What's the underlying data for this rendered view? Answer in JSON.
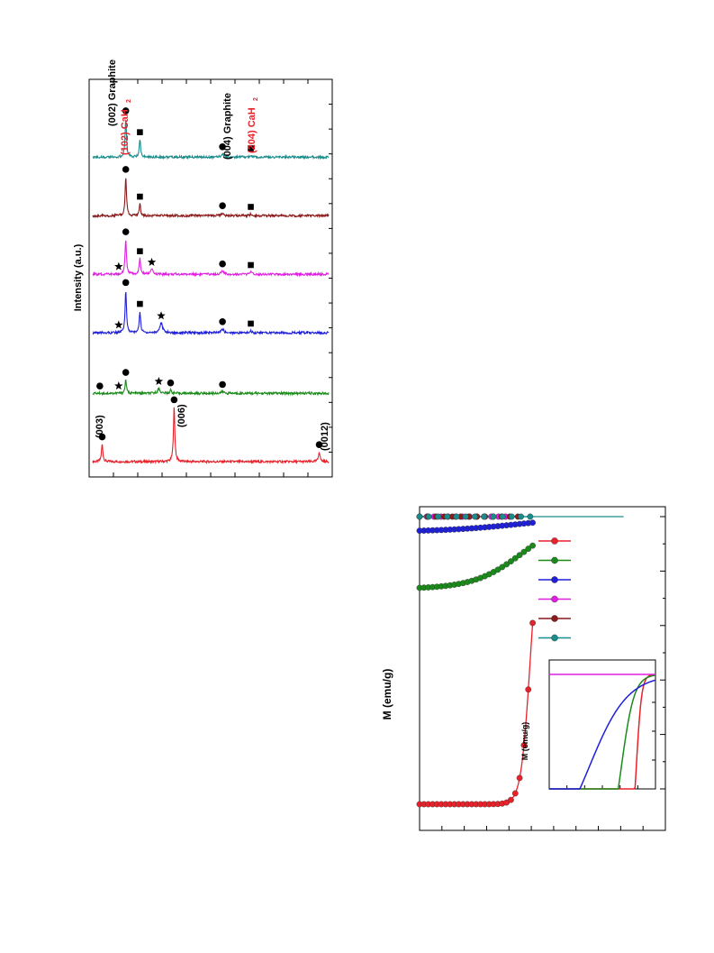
{
  "figures": {
    "xrd": {
      "ylabel": "Intensity (a.u.)",
      "markers": {
        "circle": "●",
        "square": "■",
        "star": "★"
      },
      "peak_labels": {
        "p002_graphite": "(002) Graphite",
        "p102_cah2": "(102) CaH",
        "p004_graphite": "(004) Graphite",
        "p204_cah2": "(204) CaH",
        "sub2": "2",
        "p003": "(003)",
        "p006": "(006)",
        "p0012": "(0012)"
      }
    },
    "magnetization": {
      "ylabel": "M (emu/g)",
      "inset_ylabel": "M (emu/g)"
    }
  },
  "chart_data": [
    {
      "type": "line",
      "title": "",
      "xlabel": "",
      "ylabel": "Intensity (a.u.)",
      "orientation": "rotated-90",
      "xlim": [
        0,
        100
      ],
      "series": [
        {
          "name": "",
          "color": "#e8212a",
          "baseline": 0.03,
          "peaks": [
            {
              "x": 4,
              "h": 0.045,
              "w": 0.35
            },
            {
              "x": 34.5,
              "h": 0.14,
              "w": 0.35
            },
            {
              "x": 96,
              "h": 0.025,
              "w": 0.4
            }
          ]
        },
        {
          "name": "",
          "color": "#1a8a1a",
          "baseline": 0.205,
          "peaks": [
            {
              "x": 14,
              "h": 0.035,
              "w": 0.35
            },
            {
              "x": 28,
              "h": 0.012,
              "w": 0.6
            },
            {
              "x": 33,
              "h": 0.008,
              "w": 0.4
            },
            {
              "x": 55,
              "h": 0.004,
              "w": 0.8
            }
          ]
        },
        {
          "name": "",
          "color": "#1f1fd8",
          "baseline": 0.36,
          "peaks": [
            {
              "x": 14,
              "h": 0.11,
              "w": 0.35
            },
            {
              "x": 20,
              "h": 0.055,
              "w": 0.35
            },
            {
              "x": 29,
              "h": 0.025,
              "w": 0.7
            },
            {
              "x": 55,
              "h": 0.01,
              "w": 0.6
            },
            {
              "x": 67,
              "h": 0.005,
              "w": 0.5
            }
          ]
        },
        {
          "name": "",
          "color": "#e020e0",
          "baseline": 0.51,
          "peaks": [
            {
              "x": 14,
              "h": 0.09,
              "w": 0.35
            },
            {
              "x": 20,
              "h": 0.04,
              "w": 0.35
            },
            {
              "x": 25,
              "h": 0.012,
              "w": 0.6
            },
            {
              "x": 55,
              "h": 0.008,
              "w": 0.6
            },
            {
              "x": 67,
              "h": 0.005,
              "w": 0.5
            }
          ]
        },
        {
          "name": "",
          "color": "#8b1a1a",
          "baseline": 0.66,
          "peaks": [
            {
              "x": 14,
              "h": 0.1,
              "w": 0.35
            },
            {
              "x": 20,
              "h": 0.03,
              "w": 0.35
            },
            {
              "x": 55,
              "h": 0.007,
              "w": 0.6
            },
            {
              "x": 67,
              "h": 0.004,
              "w": 0.5
            }
          ]
        },
        {
          "name": "",
          "color": "#1a8c8c",
          "baseline": 0.81,
          "peaks": [
            {
              "x": 14,
              "h": 0.1,
              "w": 0.35
            },
            {
              "x": 20,
              "h": 0.045,
              "w": 0.35
            },
            {
              "x": 55,
              "h": 0.008,
              "w": 0.6
            },
            {
              "x": 67,
              "h": 0.004,
              "w": 0.5
            }
          ]
        }
      ],
      "annotations": [
        {
          "series": 0,
          "x": 4,
          "marker": "circle"
        },
        {
          "series": 0,
          "x": 34.5,
          "marker": "circle"
        },
        {
          "series": 0,
          "x": 96,
          "marker": "circle"
        },
        {
          "series": 1,
          "x": 3,
          "marker": "circle"
        },
        {
          "series": 1,
          "x": 11,
          "marker": "star"
        },
        {
          "series": 1,
          "x": 14,
          "marker": "circle"
        },
        {
          "series": 1,
          "x": 28,
          "marker": "star"
        },
        {
          "series": 1,
          "x": 33,
          "marker": "circle"
        },
        {
          "series": 1,
          "x": 55,
          "marker": "circle"
        },
        {
          "series": 2,
          "x": 11,
          "marker": "star"
        },
        {
          "series": 2,
          "x": 14,
          "marker": "circle"
        },
        {
          "series": 2,
          "x": 20,
          "marker": "square"
        },
        {
          "series": 2,
          "x": 29,
          "marker": "star"
        },
        {
          "series": 2,
          "x": 55,
          "marker": "circle"
        },
        {
          "series": 2,
          "x": 67,
          "marker": "square"
        },
        {
          "series": 3,
          "x": 11,
          "marker": "star"
        },
        {
          "series": 3,
          "x": 14,
          "marker": "circle"
        },
        {
          "series": 3,
          "x": 20,
          "marker": "square"
        },
        {
          "series": 3,
          "x": 25,
          "marker": "star"
        },
        {
          "series": 3,
          "x": 55,
          "marker": "circle"
        },
        {
          "series": 3,
          "x": 67,
          "marker": "square"
        },
        {
          "series": 4,
          "x": 14,
          "marker": "circle"
        },
        {
          "series": 4,
          "x": 20,
          "marker": "square"
        },
        {
          "series": 4,
          "x": 55,
          "marker": "circle"
        },
        {
          "series": 4,
          "x": 67,
          "marker": "square"
        },
        {
          "series": 5,
          "x": 14,
          "marker": "circle"
        },
        {
          "series": 5,
          "x": 20,
          "marker": "square"
        },
        {
          "series": 5,
          "x": 55,
          "marker": "circle"
        },
        {
          "series": 5,
          "x": 67,
          "marker": "square"
        }
      ]
    },
    {
      "type": "line",
      "title": "",
      "xlabel": "",
      "ylabel": "M (emu/g)",
      "orientation": "rotated-90",
      "series": [
        {
          "name": "",
          "color": "#e8212a",
          "kind": "steep",
          "center": 0.45,
          "width": 0.03,
          "depth": 0.955
        },
        {
          "name": "",
          "color": "#1a8a1a",
          "kind": "gradual",
          "center": 0.42,
          "width": 0.12,
          "depth": 0.24
        },
        {
          "name": "",
          "color": "#1f1fd8",
          "kind": "gradual",
          "center": 0.4,
          "width": 0.18,
          "depth": 0.05
        },
        {
          "name": "",
          "color": "#e020e0",
          "kind": "flat",
          "depth": 0.0
        },
        {
          "name": "",
          "color": "#8b1a1a",
          "kind": "flat",
          "depth": 0.0
        },
        {
          "name": "",
          "color": "#1a8c8c",
          "kind": "flat",
          "depth": 0.0
        }
      ],
      "legend": {
        "placement": "top-right"
      },
      "inset": {
        "ylabel": "M (emu/g)",
        "series": [
          {
            "name": "",
            "color": "#e8212a",
            "center": 0.82,
            "width": 0.025
          },
          {
            "name": "",
            "color": "#1a8a1a",
            "center": 0.68,
            "width": 0.06
          },
          {
            "name": "",
            "color": "#1f1fd8",
            "center": 0.38,
            "width": 0.18
          },
          {
            "name": "",
            "color": "#e020e0",
            "flat": true
          }
        ]
      }
    }
  ]
}
